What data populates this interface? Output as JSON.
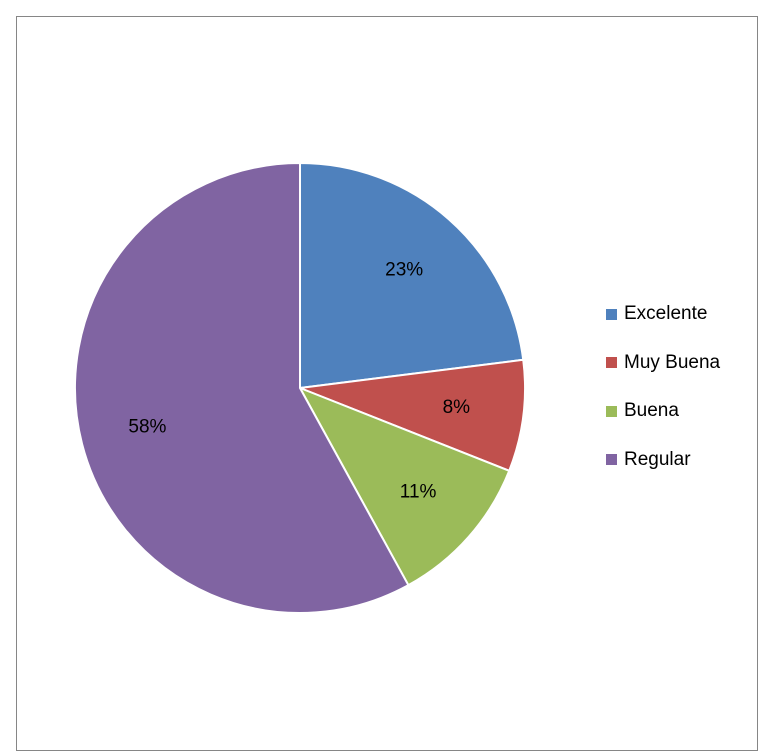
{
  "chart_data": {
    "type": "pie",
    "title": "",
    "categories": [
      "Excelente",
      "Muy Buena",
      "Buena",
      "Regular"
    ],
    "values": [
      23,
      8,
      11,
      58
    ],
    "data_labels": [
      "23%",
      "8%",
      "11%",
      "58%"
    ],
    "colors": [
      "#4f81bd",
      "#c0504d",
      "#9bbb59",
      "#8064a2"
    ],
    "legend_position": "right",
    "start_angle": "12 o'clock",
    "direction": "clockwise"
  },
  "legend": {
    "items": [
      {
        "label": "Excelente",
        "color": "#4f81bd"
      },
      {
        "label": "Muy Buena",
        "color": "#c0504d"
      },
      {
        "label": "Buena",
        "color": "#9bbb59"
      },
      {
        "label": "Regular",
        "color": "#8064a2"
      }
    ]
  }
}
